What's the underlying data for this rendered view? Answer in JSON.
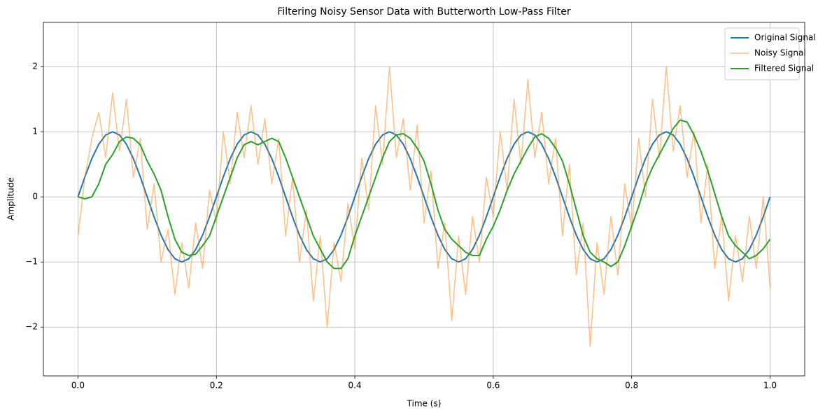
{
  "chart_data": {
    "type": "line",
    "title": "Filtering Noisy Sensor Data with Butterworth Low-Pass Filter",
    "xlabel": "Time (s)",
    "ylabel": "Amplitude",
    "x": [
      0,
      0.01,
      0.02,
      0.03,
      0.04,
      0.05,
      0.06,
      0.07,
      0.08,
      0.09,
      0.1,
      0.11,
      0.12,
      0.13,
      0.14,
      0.15,
      0.16,
      0.17,
      0.18,
      0.19,
      0.2,
      0.21,
      0.22,
      0.23,
      0.24,
      0.25,
      0.26,
      0.27,
      0.28,
      0.29,
      0.3,
      0.31,
      0.32,
      0.33,
      0.34,
      0.35,
      0.36,
      0.37,
      0.38,
      0.39,
      0.4,
      0.41,
      0.42,
      0.43,
      0.44,
      0.45,
      0.46,
      0.47,
      0.48,
      0.49,
      0.5,
      0.51,
      0.52,
      0.53,
      0.54,
      0.55,
      0.56,
      0.57,
      0.58,
      0.59,
      0.6,
      0.61,
      0.62,
      0.63,
      0.64,
      0.65,
      0.66,
      0.67,
      0.68,
      0.69,
      0.7,
      0.71,
      0.72,
      0.73,
      0.74,
      0.75,
      0.76,
      0.77,
      0.78,
      0.79,
      0.8,
      0.81,
      0.82,
      0.83,
      0.84,
      0.85,
      0.86,
      0.87,
      0.88,
      0.89,
      0.9,
      0.91,
      0.92,
      0.93,
      0.94,
      0.95,
      0.96,
      0.97,
      0.98,
      0.99,
      1.0
    ],
    "series": [
      {
        "name": "Original Signal",
        "color": "#1f77b4",
        "width": 2,
        "opacity": 1,
        "values": [
          0,
          0.309,
          0.588,
          0.809,
          0.951,
          1,
          0.951,
          0.809,
          0.588,
          0.309,
          0,
          -0.309,
          -0.588,
          -0.809,
          -0.951,
          -1,
          -0.951,
          -0.809,
          -0.588,
          -0.309,
          0,
          0.309,
          0.588,
          0.809,
          0.951,
          1,
          0.951,
          0.809,
          0.588,
          0.309,
          0,
          -0.309,
          -0.588,
          -0.809,
          -0.951,
          -1,
          -0.951,
          -0.809,
          -0.588,
          -0.309,
          0,
          0.309,
          0.588,
          0.809,
          0.951,
          1,
          0.951,
          0.809,
          0.588,
          0.309,
          0,
          -0.309,
          -0.588,
          -0.809,
          -0.951,
          -1,
          -0.951,
          -0.809,
          -0.588,
          -0.309,
          0,
          0.309,
          0.588,
          0.809,
          0.951,
          1,
          0.951,
          0.809,
          0.588,
          0.309,
          0,
          -0.309,
          -0.588,
          -0.809,
          -0.951,
          -1,
          -0.951,
          -0.809,
          -0.588,
          -0.309,
          0,
          0.309,
          0.588,
          0.809,
          0.951,
          1,
          0.951,
          0.809,
          0.588,
          0.309,
          0,
          -0.309,
          -0.588,
          -0.809,
          -0.951,
          -1,
          -0.951,
          -0.809,
          -0.588,
          -0.309,
          0
        ]
      },
      {
        "name": "Noisy Signal",
        "color": "#ff7f0e",
        "width": 1.5,
        "opacity": 0.5,
        "values": [
          -0.6,
          0.3,
          0.9,
          1.3,
          0.6,
          1.6,
          0.7,
          1.5,
          0.3,
          0.9,
          -0.5,
          0.2,
          -1.0,
          -0.5,
          -1.5,
          -0.7,
          -1.4,
          -0.4,
          -1.1,
          0.1,
          -0.4,
          1.0,
          0.2,
          1.3,
          0.6,
          1.4,
          0.5,
          1.2,
          0.2,
          0.9,
          -0.6,
          0.3,
          -1.0,
          -0.2,
          -1.6,
          -0.6,
          -2.0,
          -0.7,
          -1.3,
          -0.1,
          -0.8,
          0.6,
          -0.2,
          1.4,
          0.5,
          2.0,
          0.6,
          1.2,
          0.1,
          1.1,
          -0.4,
          0.4,
          -1.1,
          -0.4,
          -1.9,
          -0.6,
          -1.5,
          -0.3,
          -1.0,
          0.3,
          -0.3,
          1.0,
          0.1,
          1.5,
          0.5,
          1.8,
          0.6,
          1.3,
          0.2,
          0.9,
          -0.6,
          0.5,
          -1.2,
          -0.4,
          -2.3,
          -0.7,
          -1.5,
          -0.3,
          -1.2,
          0.2,
          -0.5,
          0.9,
          0.0,
          1.5,
          0.6,
          2.0,
          0.7,
          1.4,
          0.3,
          1.0,
          -0.4,
          0.5,
          -1.1,
          -0.3,
          -1.6,
          -0.6,
          -1.3,
          -0.3,
          -1.1,
          0.0,
          -1.4
        ]
      },
      {
        "name": "Filtered Signal",
        "color": "#2ca02c",
        "width": 2,
        "opacity": 1,
        "values": [
          0,
          -0.03,
          0,
          0.2,
          0.5,
          0.65,
          0.85,
          0.92,
          0.9,
          0.8,
          0.55,
          0.35,
          0.1,
          -0.3,
          -0.65,
          -0.85,
          -0.9,
          -0.88,
          -0.75,
          -0.6,
          -0.3,
          0.0,
          0.3,
          0.6,
          0.8,
          0.85,
          0.8,
          0.85,
          0.9,
          0.85,
          0.6,
          0.3,
          0.0,
          -0.3,
          -0.6,
          -0.8,
          -1.0,
          -1.1,
          -1.1,
          -0.95,
          -0.6,
          -0.3,
          0.0,
          0.3,
          0.6,
          0.85,
          0.95,
          0.97,
          0.9,
          0.75,
          0.55,
          0.2,
          -0.2,
          -0.5,
          -0.65,
          -0.75,
          -0.85,
          -0.9,
          -0.9,
          -0.65,
          -0.45,
          -0.2,
          0.1,
          0.35,
          0.55,
          0.75,
          0.92,
          0.97,
          0.9,
          0.75,
          0.55,
          0.2,
          -0.2,
          -0.6,
          -0.85,
          -0.95,
          -1.0,
          -1.07,
          -1.0,
          -0.75,
          -0.45,
          -0.15,
          0.2,
          0.45,
          0.65,
          0.85,
          1.05,
          1.18,
          1.15,
          0.95,
          0.7,
          0.4,
          0.05,
          -0.3,
          -0.6,
          -0.75,
          -0.85,
          -0.95,
          -0.9,
          -0.8,
          -0.65
        ]
      }
    ],
    "xlim": [
      -0.05,
      1.05
    ],
    "ylim": [
      -2.75,
      2.68
    ],
    "xticks": [
      {
        "value": 0,
        "label": "0.0"
      },
      {
        "value": 0.2,
        "label": "0.2"
      },
      {
        "value": 0.4,
        "label": "0.4"
      },
      {
        "value": 0.6,
        "label": "0.6"
      },
      {
        "value": 0.8,
        "label": "0.8"
      },
      {
        "value": 1.0,
        "label": "1.0"
      }
    ],
    "yticks": [
      {
        "value": -2,
        "label": "−2"
      },
      {
        "value": -1,
        "label": "−1"
      },
      0,
      1,
      2
    ],
    "grid": true,
    "legend": "upper right"
  }
}
